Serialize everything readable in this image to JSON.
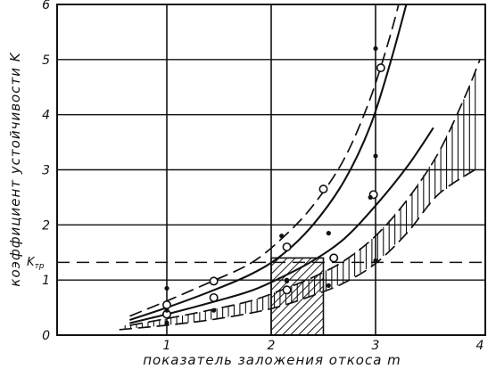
{
  "chart_data": {
    "type": "line",
    "xlabel": "показатель заложения откоса m",
    "ylabel": "коэффициент устойчивости K",
    "xlim": [
      0,
      4
    ],
    "ylim": [
      0,
      6
    ],
    "x_ticks": [
      "1",
      "2",
      "3",
      "4"
    ],
    "y_ticks": [
      "0",
      "1",
      "2",
      "3",
      "4",
      "5",
      "6"
    ],
    "grid": true,
    "reference_line": {
      "label": "K",
      "label_sub": "тр",
      "y": 1.32,
      "style": "dashed"
    },
    "series": [
      {
        "style": "dashed-upper",
        "points": [
          [
            0.65,
            0.35
          ],
          [
            1.0,
            0.62
          ],
          [
            1.4,
            0.95
          ],
          [
            1.8,
            1.3
          ],
          [
            2.1,
            1.75
          ],
          [
            2.4,
            2.35
          ],
          [
            2.7,
            3.2
          ],
          [
            2.95,
            4.3
          ],
          [
            3.15,
            5.5
          ],
          [
            3.3,
            6.6
          ]
        ]
      },
      {
        "style": "solid",
        "points": [
          [
            0.65,
            0.28
          ],
          [
            1.0,
            0.5
          ],
          [
            1.4,
            0.78
          ],
          [
            1.8,
            1.1
          ],
          [
            2.1,
            1.45
          ],
          [
            2.4,
            2.0
          ],
          [
            2.7,
            2.8
          ],
          [
            2.95,
            3.8
          ],
          [
            3.15,
            5.0
          ],
          [
            3.35,
            6.4
          ]
        ]
      },
      {
        "style": "solid",
        "points": [
          [
            0.65,
            0.22
          ],
          [
            1.0,
            0.38
          ],
          [
            1.4,
            0.58
          ],
          [
            1.8,
            0.8
          ],
          [
            2.1,
            1.05
          ],
          [
            2.4,
            1.35
          ],
          [
            2.7,
            1.75
          ],
          [
            3.0,
            2.35
          ],
          [
            3.3,
            3.05
          ],
          [
            3.55,
            3.75
          ]
        ]
      },
      {
        "style": "dashed",
        "points": [
          [
            0.65,
            0.18
          ],
          [
            1.0,
            0.3
          ],
          [
            1.4,
            0.45
          ],
          [
            1.8,
            0.62
          ],
          [
            2.1,
            0.82
          ],
          [
            2.4,
            1.05
          ],
          [
            2.7,
            1.35
          ],
          [
            3.0,
            1.8
          ],
          [
            3.3,
            2.45
          ],
          [
            3.6,
            3.3
          ],
          [
            3.85,
            4.3
          ],
          [
            4.0,
            5.0
          ]
        ]
      },
      {
        "style": "dashed-lower",
        "points": [
          [
            0.55,
            0.1
          ],
          [
            1.0,
            0.18
          ],
          [
            1.5,
            0.3
          ],
          [
            2.0,
            0.48
          ],
          [
            2.4,
            0.72
          ],
          [
            2.7,
            0.95
          ],
          [
            3.0,
            1.3
          ],
          [
            3.3,
            1.85
          ],
          [
            3.6,
            2.55
          ],
          [
            3.95,
            3.0
          ]
        ]
      }
    ],
    "hatched_band": {
      "style": "vertical-hatch",
      "from_series": 3,
      "to_series": 4,
      "x_range": [
        0.6,
        3.98
      ]
    },
    "hatched_region": {
      "style": "diagonal-hatch",
      "x_range": [
        2.0,
        2.5
      ],
      "y_range": [
        0,
        1.4
      ]
    },
    "markers": {
      "open_circles": [
        [
          1.0,
          0.55
        ],
        [
          1.0,
          0.38
        ],
        [
          1.45,
          0.98
        ],
        [
          1.45,
          0.68
        ],
        [
          2.15,
          1.6
        ],
        [
          2.15,
          0.82
        ],
        [
          2.5,
          2.65
        ],
        [
          2.6,
          1.4
        ],
        [
          2.98,
          2.55
        ],
        [
          3.05,
          4.85
        ]
      ],
      "filled_dots": [
        [
          1.0,
          0.85
        ],
        [
          1.0,
          0.22
        ],
        [
          1.0,
          0.45
        ],
        [
          1.45,
          0.45
        ],
        [
          2.1,
          1.8
        ],
        [
          2.15,
          0.98
        ],
        [
          2.15,
          1.0
        ],
        [
          2.55,
          1.85
        ],
        [
          2.55,
          0.9
        ],
        [
          3.0,
          1.35
        ],
        [
          3.0,
          3.25
        ],
        [
          3.0,
          5.2
        ],
        [
          2.95,
          2.5
        ]
      ]
    }
  }
}
